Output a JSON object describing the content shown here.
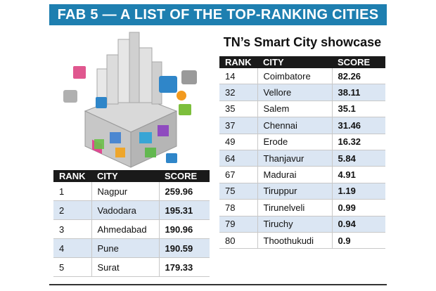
{
  "banner_title": "FAB 5 — A LIST OF THE TOP-RANKING CITIES",
  "tn_title": "TN’s Smart City showcase",
  "columns": [
    "RANK",
    "CITY",
    "SCORE"
  ],
  "national_rows": [
    {
      "rank": "1",
      "city": "Nagpur",
      "score": "259.96"
    },
    {
      "rank": "2",
      "city": "Vadodara",
      "score": "195.31"
    },
    {
      "rank": "3",
      "city": "Ahmedabad",
      "score": "190.96"
    },
    {
      "rank": "4",
      "city": "Pune",
      "score": "190.59"
    },
    {
      "rank": "5",
      "city": "Surat",
      "score": "179.33"
    }
  ],
  "tn_rows": [
    {
      "rank": "14",
      "city": "Coimbatore",
      "score": "82.26"
    },
    {
      "rank": "32",
      "city": "Vellore",
      "score": "38.11"
    },
    {
      "rank": "35",
      "city": "Salem",
      "score": "35.1"
    },
    {
      "rank": "37",
      "city": "Chennai",
      "score": "31.46"
    },
    {
      "rank": "49",
      "city": "Erode",
      "score": "16.32"
    },
    {
      "rank": "64",
      "city": "Thanjavur",
      "score": "5.84"
    },
    {
      "rank": "67",
      "city": "Madurai",
      "score": "4.91"
    },
    {
      "rank": "75",
      "city": "Tiruppur",
      "score": "1.19"
    },
    {
      "rank": "78",
      "city": "Tirunelveli",
      "score": "0.99"
    },
    {
      "rank": "79",
      "city": "Tiruchy",
      "score": "0.94"
    },
    {
      "rank": "80",
      "city": "Thoothukudi",
      "score": "0.9"
    }
  ],
  "colors": {
    "banner": "#1e7fb0",
    "header": "#1a1a1a",
    "stripe": "#dbe6f3"
  }
}
